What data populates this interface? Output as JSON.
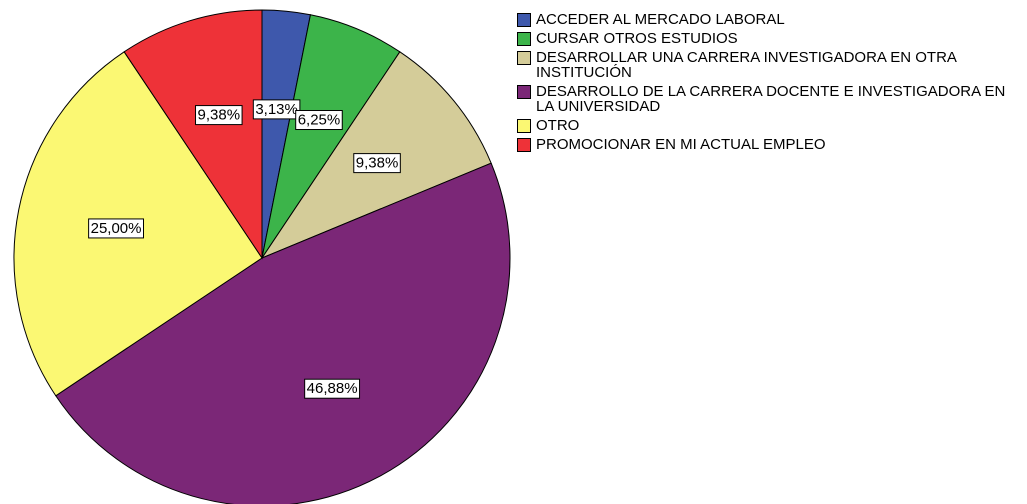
{
  "chart_data": {
    "type": "pie",
    "categories": [
      "ACCEDER AL MERCADO LABORAL",
      "CURSAR OTROS ESTUDIOS",
      "DESARROLLAR UNA CARRERA INVESTIGADORA EN OTRA INSTITUCIÓN",
      "DESARROLLO DE LA CARRERA DOCENTE E INVESTIGADORA EN LA UNIVERSIDAD",
      "OTRO",
      "PROMOCIONAR EN MI ACTUAL EMPLEO"
    ],
    "values": [
      3.13,
      6.25,
      9.38,
      46.88,
      25.0,
      9.38
    ],
    "value_labels": [
      "3,13%",
      "6,25%",
      "9,38%",
      "46,88%",
      "25,00%",
      "9,38%"
    ],
    "colors": [
      "#3e58ac",
      "#3cb44a",
      "#d4cc99",
      "#7b2777",
      "#fbf873",
      "#ee3238"
    ],
    "legend": "right"
  }
}
